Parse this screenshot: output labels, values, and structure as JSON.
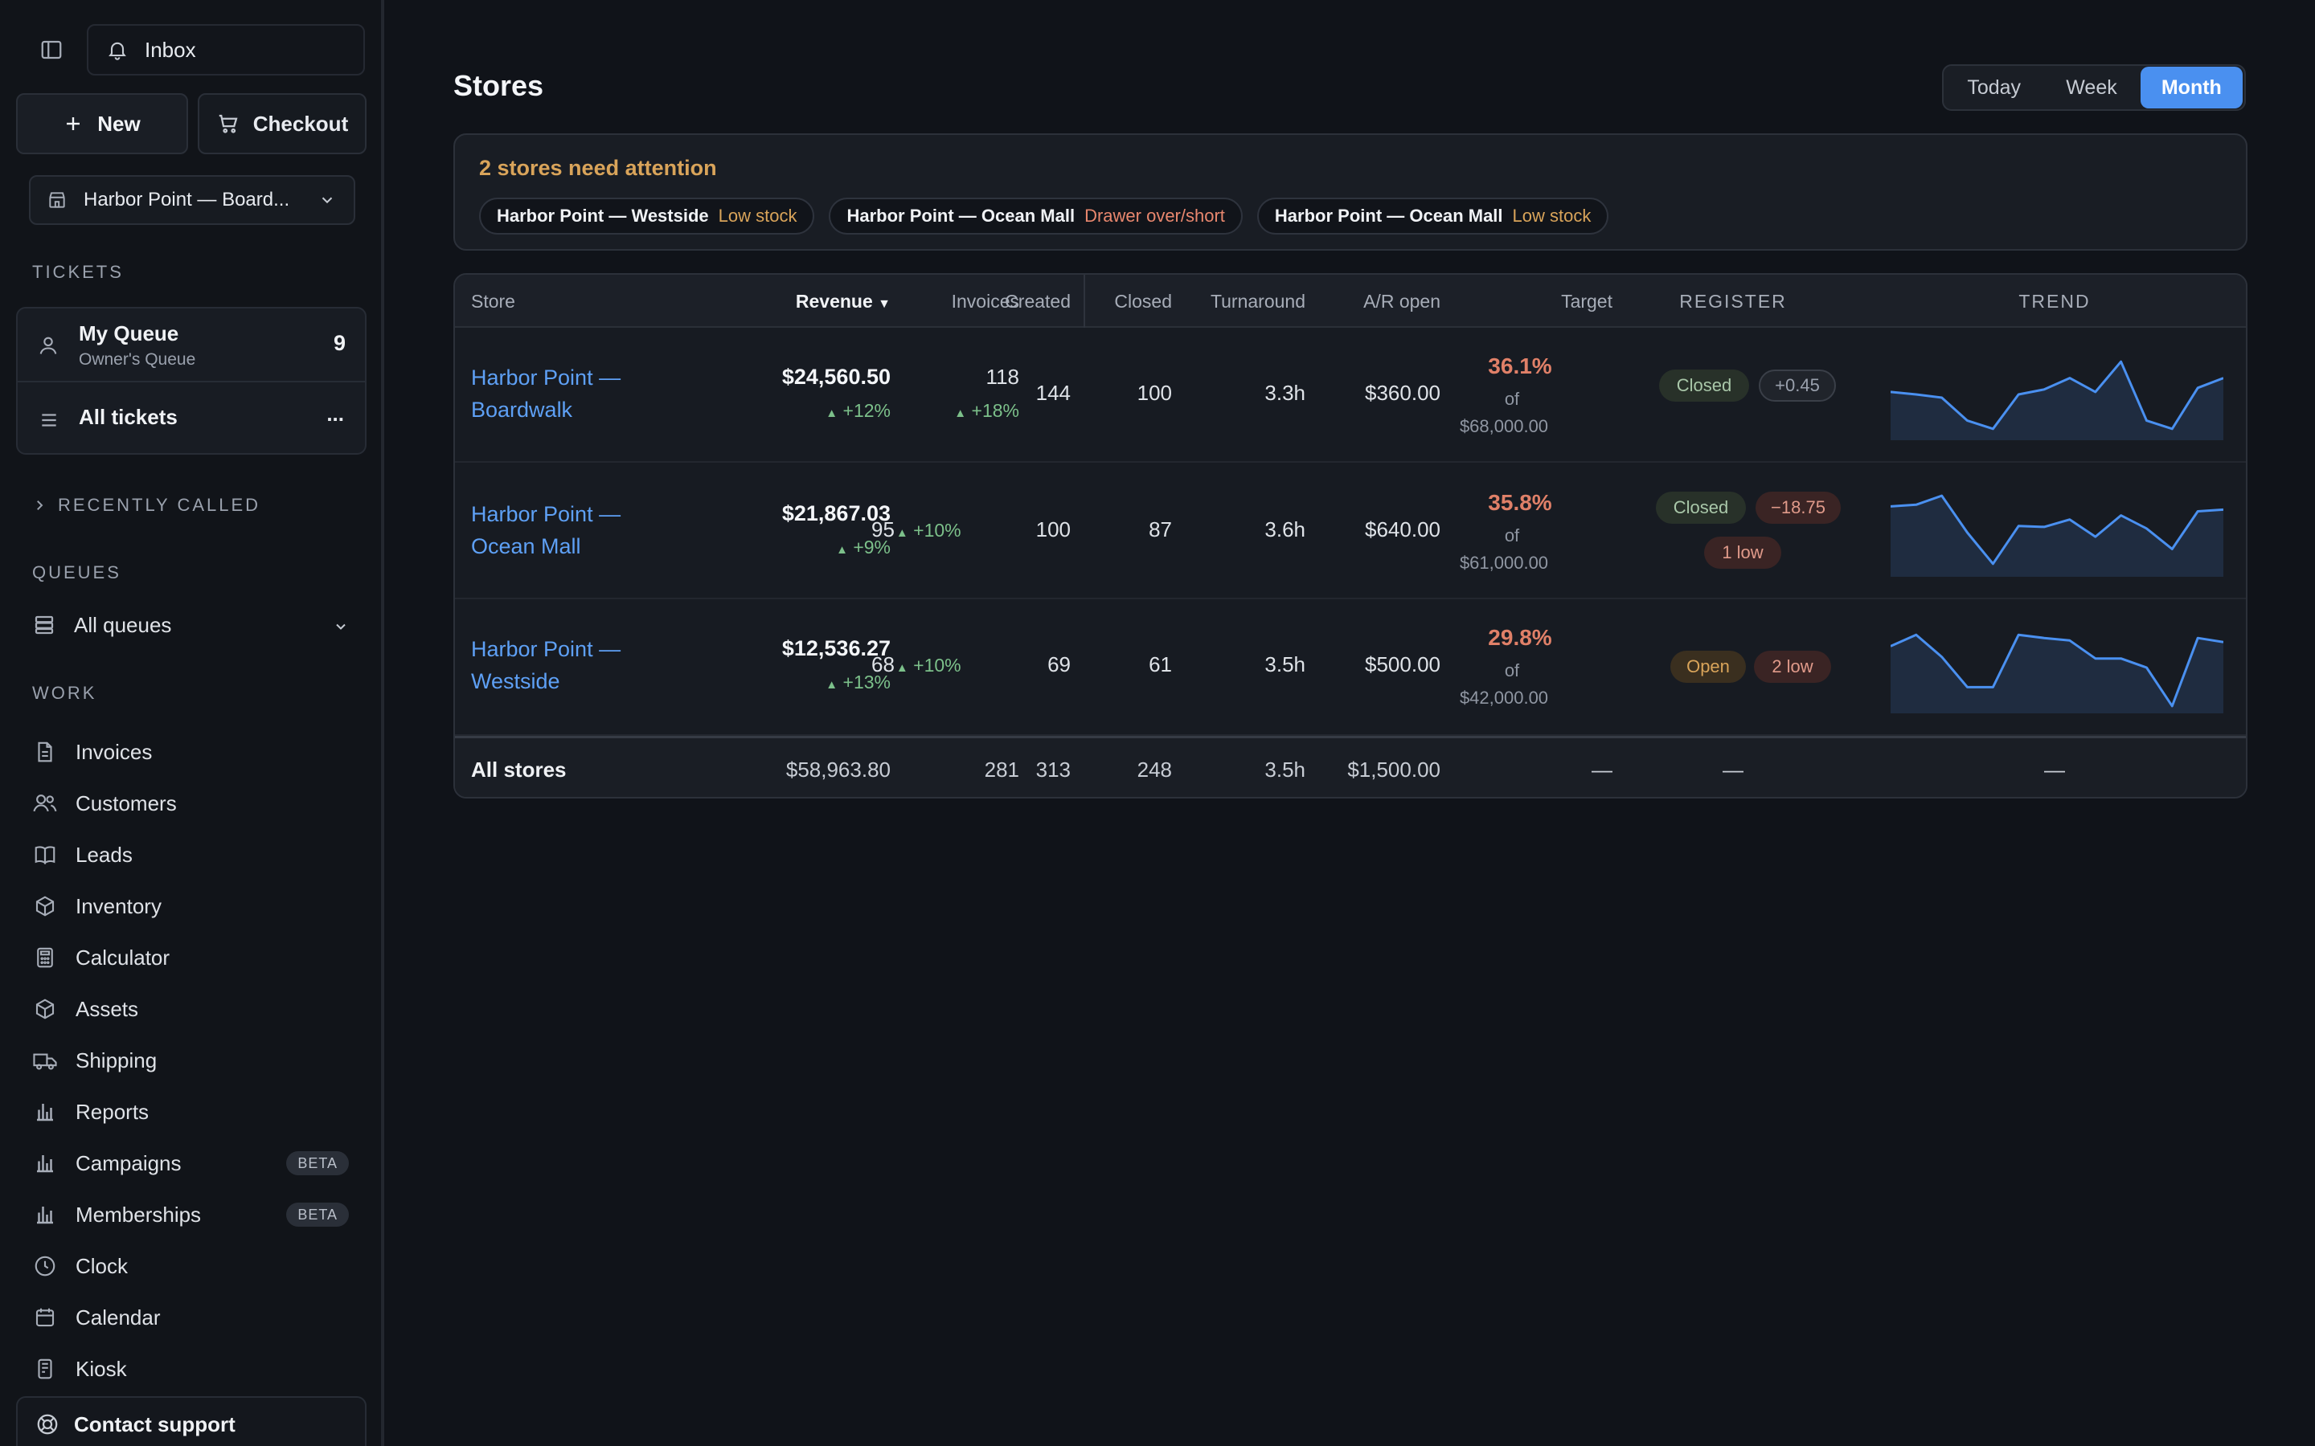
{
  "sidebar": {
    "inbox_label": "Inbox",
    "new_label": "New",
    "checkout_label": "Checkout",
    "store_selector": "Harbor Point — Board...",
    "tickets_section": "TICKETS",
    "my_queue": {
      "title": "My Queue",
      "subtitle": "Owner's Queue",
      "count": "9"
    },
    "all_tickets": {
      "title": "All tickets",
      "more": "..."
    },
    "recently_called": "RECENTLY CALLED",
    "queues_section": "QUEUES",
    "all_queues": "All queues",
    "work_section": "WORK",
    "nav": [
      {
        "label": "Invoices",
        "icon": "file-icon"
      },
      {
        "label": "Customers",
        "icon": "users-icon"
      },
      {
        "label": "Leads",
        "icon": "book-icon"
      },
      {
        "label": "Inventory",
        "icon": "box-icon"
      },
      {
        "label": "Calculator",
        "icon": "calculator-icon"
      },
      {
        "label": "Assets",
        "icon": "cube-icon"
      },
      {
        "label": "Shipping",
        "icon": "truck-icon"
      },
      {
        "label": "Reports",
        "icon": "bar-chart-icon"
      },
      {
        "label": "Campaigns",
        "icon": "bar-chart-icon",
        "badge": "BETA"
      },
      {
        "label": "Memberships",
        "icon": "bar-chart-icon",
        "badge": "BETA"
      },
      {
        "label": "Clock",
        "icon": "clock-icon"
      },
      {
        "label": "Calendar",
        "icon": "calendar-icon"
      },
      {
        "label": "Kiosk",
        "icon": "kiosk-icon"
      }
    ],
    "contact_support": "Contact support"
  },
  "main": {
    "title": "Stores",
    "range": {
      "options": [
        "Today",
        "Week",
        "Month"
      ],
      "selected": "Month"
    },
    "attention": {
      "header": "2 stores need attention",
      "chips": [
        {
          "store": "Harbor Point — Westside",
          "issue": "Low stock",
          "severity": "amber"
        },
        {
          "store": "Harbor Point — Ocean Mall",
          "issue": "Drawer over/short",
          "severity": "red"
        },
        {
          "store": "Harbor Point — Ocean Mall",
          "issue": "Low stock",
          "severity": "amber"
        }
      ]
    },
    "table": {
      "columns": {
        "store": "Store",
        "revenue": "Revenue",
        "sort_indicator": "▼",
        "invoices": "Invoices",
        "created": "Created",
        "closed": "Closed",
        "turnaround": "Turnaround",
        "ar_open": "A/R open",
        "target": "Target",
        "register": "REGISTER",
        "trend": "TREND"
      },
      "rows": [
        {
          "store_line1": "Harbor Point —",
          "store_line2": "Boardwalk",
          "revenue": "$24,560.50",
          "revenue_delta": "+12%",
          "invoices": "118",
          "invoices_delta": "+18%",
          "created": "144",
          "closed": "100",
          "turnaround": "3.3h",
          "ar_open": "$360.00",
          "target_pct": "36.1%",
          "target_of": "of",
          "target_amount": "$68,000.00",
          "register_status": "Closed",
          "register_extra": "+0.45",
          "register_low": "",
          "trend": [
            0.55,
            0.52,
            0.48,
            0.2,
            0.1,
            0.52,
            0.58,
            0.72,
            0.55,
            0.92,
            0.2,
            0.1,
            0.6,
            0.72
          ]
        },
        {
          "store_line1": "Harbor Point —",
          "store_line2": "Ocean Mall",
          "revenue": "$21,867.03",
          "revenue_delta": "+9%",
          "invoices": "95",
          "invoices_delta": "+10%",
          "created": "100",
          "closed": "87",
          "turnaround": "3.6h",
          "ar_open": "$640.00",
          "target_pct": "35.8%",
          "target_of": "of",
          "target_amount": "$61,000.00",
          "register_status": "Closed",
          "register_extra": "−18.75",
          "register_low": "1 low",
          "trend": [
            0.82,
            0.84,
            0.95,
            0.5,
            0.12,
            0.58,
            0.57,
            0.66,
            0.45,
            0.71,
            0.55,
            0.3,
            0.76,
            0.78
          ]
        },
        {
          "store_line1": "Harbor Point —",
          "store_line2": "Westside",
          "revenue": "$12,536.27",
          "revenue_delta": "+13%",
          "invoices": "68",
          "invoices_delta": "+10%",
          "created": "69",
          "closed": "61",
          "turnaround": "3.5h",
          "ar_open": "$500.00",
          "target_pct": "29.8%",
          "target_of": "of",
          "target_amount": "$42,000.00",
          "register_status": "Open",
          "register_extra": "",
          "register_low": "2 low",
          "trend": [
            0.78,
            0.92,
            0.65,
            0.28,
            0.28,
            0.92,
            0.88,
            0.85,
            0.63,
            0.63,
            0.52,
            0.05,
            0.88,
            0.83
          ]
        }
      ],
      "totals": {
        "label": "All stores",
        "revenue": "$58,963.80",
        "invoices": "281",
        "created": "313",
        "closed": "248",
        "turnaround": "3.5h",
        "ar_open": "$1,500.00",
        "target": "—",
        "register": "—",
        "trend": "—"
      }
    }
  },
  "colors": {
    "accent": "#4a90f0",
    "link": "#5ea0f5",
    "warning": "#d9a45a",
    "danger": "#e8876e",
    "positive": "#7cc08a",
    "trend_line": "#4a90f0"
  }
}
